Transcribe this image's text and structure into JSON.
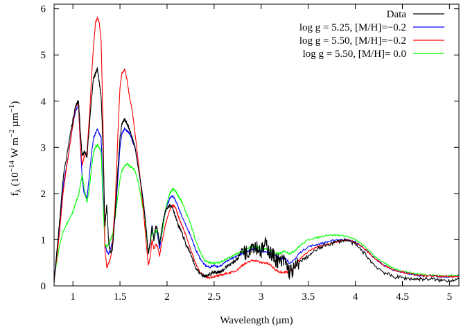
{
  "chart_data": {
    "type": "line",
    "xlabel": "Wavelength (µm)",
    "ylabel": {
      "base": "f",
      "sub": "λ",
      "p1": " (10",
      "sup1": "−14",
      "p2": " W m",
      "sup2": "−2",
      "p3": " µm",
      "sup3": "−1",
      "p4": ")"
    },
    "xlim": [
      0.8,
      5.1
    ],
    "ylim": [
      0,
      6.1
    ],
    "xticks": [
      1,
      1.5,
      2,
      2.5,
      3,
      3.5,
      4,
      4.5,
      5
    ],
    "xtick_labels": [
      "1",
      "1.5",
      "2",
      "2.5",
      "3",
      "3.5",
      "4",
      "4.5",
      "5"
    ],
    "yticks": [
      0,
      1,
      2,
      3,
      4,
      5,
      6
    ],
    "ytick_labels": [
      "0",
      "1",
      "2",
      "3",
      "4",
      "5",
      "6"
    ],
    "grid": false,
    "legend_position": "top-right",
    "series": [
      {
        "name": "Data",
        "color": "#000000",
        "x": [
          0.8,
          0.85,
          0.9,
          0.95,
          1.0,
          1.03,
          1.06,
          1.08,
          1.1,
          1.12,
          1.15,
          1.18,
          1.2,
          1.22,
          1.24,
          1.26,
          1.28,
          1.3,
          1.32,
          1.34,
          1.36,
          1.38,
          1.4,
          1.42,
          1.45,
          1.48,
          1.5,
          1.52,
          1.55,
          1.58,
          1.6,
          1.63,
          1.66,
          1.7,
          1.75,
          1.78,
          1.8,
          1.82,
          1.84,
          1.86,
          1.88,
          1.9,
          1.92,
          1.95,
          1.98,
          2.0,
          2.03,
          2.06,
          2.09,
          2.12,
          2.15,
          2.2,
          2.25,
          2.3,
          2.35,
          2.4,
          2.45,
          2.5,
          2.55,
          2.6,
          2.65,
          2.7,
          2.75,
          2.8,
          2.85,
          2.9,
          2.95,
          3.0,
          3.05,
          3.1,
          3.15,
          3.2,
          3.25,
          3.3,
          3.35,
          3.4,
          3.5,
          3.6,
          3.7,
          3.8,
          3.9,
          4.0,
          4.1,
          4.2,
          4.3,
          4.4,
          4.5,
          4.6,
          4.7,
          4.8,
          4.9,
          5.0,
          5.1
        ],
        "y": [
          0.1,
          1.2,
          2.4,
          3.0,
          3.6,
          3.9,
          4.0,
          3.3,
          2.8,
          2.9,
          2.8,
          3.6,
          4.1,
          4.5,
          4.6,
          4.7,
          4.4,
          4.1,
          3.0,
          1.3,
          1.75,
          0.95,
          0.7,
          0.8,
          1.6,
          2.6,
          3.2,
          3.5,
          3.6,
          3.5,
          3.4,
          3.2,
          3.0,
          2.5,
          1.8,
          1.2,
          0.7,
          0.9,
          1.3,
          1.0,
          1.3,
          1.2,
          0.9,
          1.3,
          1.6,
          1.7,
          1.75,
          1.7,
          1.5,
          1.3,
          1.2,
          0.9,
          0.7,
          0.4,
          0.25,
          0.2,
          0.25,
          0.3,
          0.3,
          0.35,
          0.45,
          0.5,
          0.6,
          0.8,
          0.7,
          0.9,
          0.85,
          0.75,
          0.9,
          0.7,
          0.6,
          0.5,
          0.55,
          0.3,
          0.35,
          0.5,
          0.65,
          0.8,
          0.9,
          0.95,
          1.0,
          0.9,
          0.7,
          0.45,
          0.3,
          0.2,
          0.18,
          0.15,
          0.15,
          0.15,
          0.12,
          0.12,
          0.15
        ]
      },
      {
        "name": "log g = 5.25, [M/H]=−0.2",
        "color": "#0000ff",
        "x": [
          0.8,
          0.85,
          0.9,
          0.95,
          1.0,
          1.03,
          1.06,
          1.08,
          1.1,
          1.12,
          1.15,
          1.18,
          1.2,
          1.22,
          1.24,
          1.26,
          1.28,
          1.3,
          1.32,
          1.34,
          1.36,
          1.38,
          1.4,
          1.42,
          1.45,
          1.48,
          1.5,
          1.52,
          1.55,
          1.58,
          1.6,
          1.63,
          1.66,
          1.7,
          1.75,
          1.78,
          1.8,
          1.82,
          1.84,
          1.86,
          1.88,
          1.9,
          1.92,
          1.95,
          1.98,
          2.0,
          2.03,
          2.06,
          2.09,
          2.12,
          2.15,
          2.2,
          2.25,
          2.3,
          2.35,
          2.4,
          2.45,
          2.5,
          2.55,
          2.6,
          2.65,
          2.7,
          2.75,
          2.8,
          2.85,
          2.9,
          2.95,
          3.0,
          3.05,
          3.1,
          3.15,
          3.2,
          3.25,
          3.3,
          3.35,
          3.4,
          3.5,
          3.6,
          3.7,
          3.8,
          3.9,
          4.0,
          4.1,
          4.2,
          4.3,
          4.4,
          4.5,
          4.6,
          4.7,
          4.8,
          4.9,
          5.0,
          5.1
        ],
        "y": [
          0.15,
          1.1,
          2.2,
          2.8,
          3.5,
          3.8,
          3.9,
          3.0,
          2.3,
          2.0,
          1.9,
          2.5,
          2.9,
          3.2,
          3.3,
          3.4,
          3.3,
          3.2,
          2.0,
          0.9,
          0.75,
          0.7,
          0.8,
          0.95,
          1.5,
          2.4,
          3.0,
          3.3,
          3.4,
          3.35,
          3.3,
          3.15,
          3.0,
          2.5,
          1.8,
          1.2,
          0.7,
          0.9,
          1.3,
          1.0,
          1.2,
          1.1,
          0.8,
          1.2,
          1.6,
          1.75,
          1.9,
          1.95,
          1.85,
          1.7,
          1.55,
          1.3,
          1.1,
          0.8,
          0.6,
          0.45,
          0.4,
          0.45,
          0.4,
          0.5,
          0.55,
          0.6,
          0.65,
          0.7,
          0.75,
          0.8,
          0.8,
          0.75,
          0.75,
          0.7,
          0.65,
          0.6,
          0.6,
          0.5,
          0.55,
          0.7,
          0.85,
          0.9,
          0.95,
          1.0,
          1.0,
          0.95,
          0.8,
          0.6,
          0.45,
          0.35,
          0.3,
          0.25,
          0.22,
          0.22,
          0.2,
          0.2,
          0.22
        ]
      },
      {
        "name": "log g = 5.50, [M/H]=−0.2",
        "color": "#ff0000",
        "x": [
          0.8,
          0.85,
          0.9,
          0.95,
          1.0,
          1.03,
          1.06,
          1.08,
          1.1,
          1.12,
          1.15,
          1.18,
          1.2,
          1.22,
          1.24,
          1.26,
          1.28,
          1.3,
          1.32,
          1.34,
          1.36,
          1.38,
          1.4,
          1.42,
          1.45,
          1.48,
          1.5,
          1.52,
          1.55,
          1.58,
          1.6,
          1.63,
          1.66,
          1.7,
          1.75,
          1.78,
          1.8,
          1.82,
          1.84,
          1.86,
          1.88,
          1.9,
          1.92,
          1.95,
          1.98,
          2.0,
          2.03,
          2.06,
          2.09,
          2.12,
          2.15,
          2.2,
          2.25,
          2.3,
          2.35,
          2.4,
          2.45,
          2.5,
          2.55,
          2.6,
          2.65,
          2.7,
          2.75,
          2.8,
          2.85,
          2.9,
          2.95,
          3.0,
          3.05,
          3.1,
          3.15,
          3.2,
          3.25,
          3.3,
          3.35,
          3.4,
          3.5,
          3.6,
          3.7,
          3.8,
          3.9,
          4.0,
          4.1,
          4.2,
          4.3,
          4.4,
          4.5,
          4.6,
          4.7,
          4.8,
          4.9,
          5.0,
          5.1
        ],
        "y": [
          0.1,
          1.0,
          2.1,
          2.8,
          3.5,
          3.9,
          3.95,
          3.0,
          2.6,
          2.8,
          2.9,
          3.8,
          4.6,
          5.2,
          5.7,
          5.8,
          5.7,
          5.3,
          3.5,
          0.8,
          0.4,
          0.5,
          0.6,
          0.9,
          1.8,
          3.4,
          4.3,
          4.6,
          4.7,
          4.4,
          4.1,
          3.8,
          3.3,
          2.6,
          1.6,
          0.9,
          0.45,
          0.6,
          1.0,
          0.8,
          0.9,
          0.85,
          0.65,
          1.0,
          1.3,
          1.45,
          1.65,
          1.75,
          1.7,
          1.5,
          1.35,
          1.1,
          0.8,
          0.5,
          0.3,
          0.2,
          0.18,
          0.2,
          0.22,
          0.25,
          0.28,
          0.3,
          0.35,
          0.45,
          0.5,
          0.55,
          0.55,
          0.5,
          0.5,
          0.45,
          0.35,
          0.3,
          0.3,
          0.3,
          0.4,
          0.55,
          0.75,
          0.85,
          0.9,
          0.95,
          1.0,
          0.95,
          0.8,
          0.6,
          0.45,
          0.35,
          0.3,
          0.25,
          0.22,
          0.22,
          0.2,
          0.2,
          0.2
        ]
      },
      {
        "name": "log g = 5.50, [M/H]=  0.0",
        "color": "#00ff00",
        "x": [
          0.8,
          0.85,
          0.9,
          0.95,
          1.0,
          1.03,
          1.06,
          1.08,
          1.1,
          1.12,
          1.15,
          1.18,
          1.2,
          1.22,
          1.24,
          1.26,
          1.28,
          1.3,
          1.32,
          1.34,
          1.36,
          1.38,
          1.4,
          1.42,
          1.45,
          1.48,
          1.5,
          1.52,
          1.55,
          1.58,
          1.6,
          1.63,
          1.66,
          1.7,
          1.75,
          1.78,
          1.8,
          1.82,
          1.84,
          1.86,
          1.88,
          1.9,
          1.92,
          1.95,
          1.98,
          2.0,
          2.03,
          2.06,
          2.09,
          2.12,
          2.15,
          2.2,
          2.25,
          2.3,
          2.35,
          2.4,
          2.45,
          2.5,
          2.55,
          2.6,
          2.65,
          2.7,
          2.75,
          2.8,
          2.85,
          2.9,
          2.95,
          3.0,
          3.05,
          3.1,
          3.15,
          3.2,
          3.25,
          3.3,
          3.35,
          3.4,
          3.5,
          3.6,
          3.7,
          3.8,
          3.9,
          4.0,
          4.1,
          4.2,
          4.3,
          4.4,
          4.5,
          4.6,
          4.7,
          4.8,
          4.9,
          5.0,
          5.1
        ],
        "y": [
          0.15,
          0.8,
          1.2,
          1.4,
          1.6,
          1.8,
          1.95,
          2.2,
          2.4,
          2.1,
          1.8,
          2.2,
          2.6,
          2.9,
          3.0,
          3.05,
          3.0,
          2.9,
          1.8,
          0.9,
          0.85,
          0.9,
          1.0,
          1.1,
          1.5,
          2.0,
          2.3,
          2.5,
          2.6,
          2.65,
          2.6,
          2.55,
          2.5,
          2.2,
          1.6,
          1.1,
          0.75,
          0.9,
          1.2,
          1.0,
          1.2,
          1.15,
          0.9,
          1.2,
          1.6,
          1.8,
          2.0,
          2.1,
          2.05,
          1.95,
          1.85,
          1.6,
          1.35,
          1.0,
          0.75,
          0.55,
          0.5,
          0.5,
          0.5,
          0.55,
          0.6,
          0.65,
          0.7,
          0.75,
          0.8,
          0.85,
          0.85,
          0.8,
          0.8,
          0.75,
          0.7,
          0.7,
          0.75,
          0.7,
          0.75,
          0.85,
          1.0,
          1.05,
          1.1,
          1.1,
          1.08,
          1.0,
          0.85,
          0.65,
          0.5,
          0.38,
          0.32,
          0.28,
          0.25,
          0.24,
          0.22,
          0.22,
          0.24
        ]
      }
    ]
  }
}
